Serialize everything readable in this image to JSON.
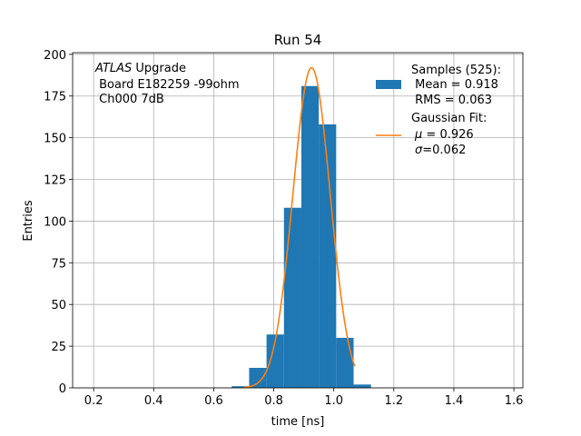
{
  "chart_data": {
    "type": "bar",
    "title": "Run 54",
    "xlabel": "time [ns]",
    "ylabel": "Entries",
    "xlim": [
      0.13,
      1.63
    ],
    "ylim": [
      0,
      201
    ],
    "xticks": [
      "0.2",
      "0.4",
      "0.6",
      "0.8",
      "1.0",
      "1.2",
      "1.4",
      "1.6"
    ],
    "xtick_values": [
      0.2,
      0.4,
      0.6,
      0.8,
      1.0,
      1.2,
      1.4,
      1.6
    ],
    "yticks": [
      "0",
      "25",
      "50",
      "75",
      "100",
      "125",
      "150",
      "175",
      "200"
    ],
    "ytick_values": [
      0,
      25,
      50,
      75,
      100,
      125,
      150,
      175,
      200
    ],
    "grid": true,
    "histogram": {
      "name": "Samples (525)",
      "color": "#1f77b4",
      "bin_edges": [
        0.66,
        0.718,
        0.776,
        0.834,
        0.892,
        0.95,
        1.008,
        1.066,
        1.124
      ],
      "counts": [
        1,
        12,
        32,
        108,
        181,
        158,
        30,
        2
      ]
    },
    "fit": {
      "name": "Gaussian Fit",
      "color": "#ff7f0e",
      "amplitude": 192,
      "mu": 0.926,
      "sigma": 0.062,
      "x_range": [
        0.7,
        1.07
      ]
    },
    "annotation": {
      "line1_italic": "ATLAS",
      "line1_rest": " Upgrade",
      "line2": " Board E182259 -99ohm",
      "line3": " Ch000 7dB"
    },
    "legend": {
      "placement": "top-right",
      "samples_lines": [
        "Samples (525):",
        " Mean = 0.918",
        " RMS = 0.063"
      ],
      "fit_line1": "Gaussian Fit:",
      "fit_mu_symbol": "μ",
      "fit_mu_rest": " = 0.926",
      "fit_sigma_symbol": "σ",
      "fit_sigma_rest": "=0.062"
    }
  }
}
